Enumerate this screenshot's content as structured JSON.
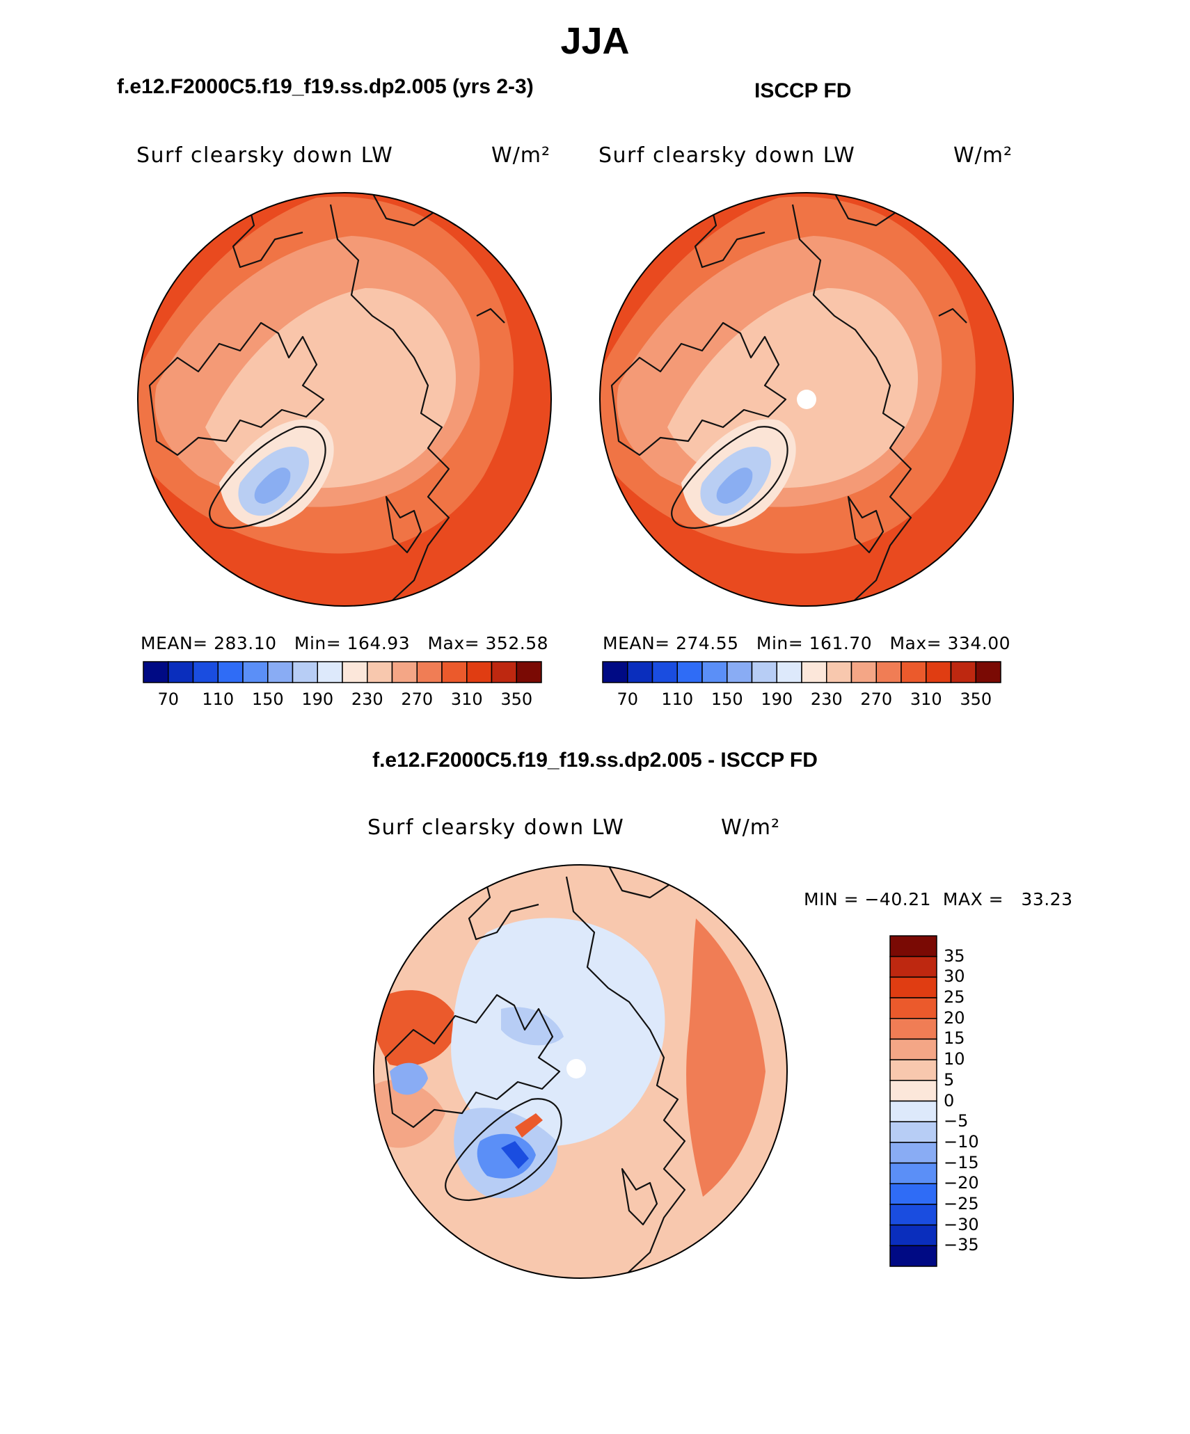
{
  "header": {
    "season": "JJA",
    "model_title": "f.e12.F2000C5.f19_f19.ss.dp2.005 (yrs 2-3)",
    "obs_title": "ISCCP FD",
    "diff_title": "f.e12.F2000C5.f19_f19.ss.dp2.005 - ISCCP FD"
  },
  "panels": [
    {
      "variable": "Surf clearsky down LW",
      "units": "W/m²",
      "stats": "MEAN= 283.10   Min= 164.93   Max= 352.58",
      "mean": 283.1,
      "min": 164.93,
      "max": 352.58
    },
    {
      "variable": "Surf clearsky down LW",
      "units": "W/m²",
      "stats": "MEAN= 274.55   Min= 161.70   Max= 334.00",
      "mean": 274.55,
      "min": 161.7,
      "max": 334.0
    },
    {
      "variable": "Surf clearsky down LW",
      "units": "W/m²",
      "stats": "MIN = −40.21  MAX =   33.23",
      "min": -40.21,
      "max": 33.23
    }
  ],
  "colorbar_abs": {
    "labels": [
      "70",
      "110",
      "150",
      "190",
      "230",
      "270",
      "310",
      "350"
    ],
    "colors": [
      "#000a84",
      "#0a2ebd",
      "#1a4de0",
      "#2f6cf6",
      "#5b8ff7",
      "#89acf4",
      "#b7cdf5",
      "#dde9fb",
      "#fce7da",
      "#f8c8ae",
      "#f4a686",
      "#f07d55",
      "#eb5a2c",
      "#e03d12",
      "#be2810",
      "#7a0a04"
    ]
  },
  "colorbar_diff": {
    "labels": [
      "35",
      "30",
      "25",
      "20",
      "15",
      "10",
      "5",
      "0",
      "−5",
      "−10",
      "−15",
      "−20",
      "−25",
      "−30",
      "−35"
    ],
    "colors": [
      "#7a0a04",
      "#be2810",
      "#e03d12",
      "#eb5a2c",
      "#f07d55",
      "#f4a686",
      "#f8c8ae",
      "#fce7da",
      "#dde9fb",
      "#b7cdf5",
      "#89acf4",
      "#5b8ff7",
      "#2f6cf6",
      "#1a4de0",
      "#0a2ebd",
      "#000a84"
    ]
  }
}
